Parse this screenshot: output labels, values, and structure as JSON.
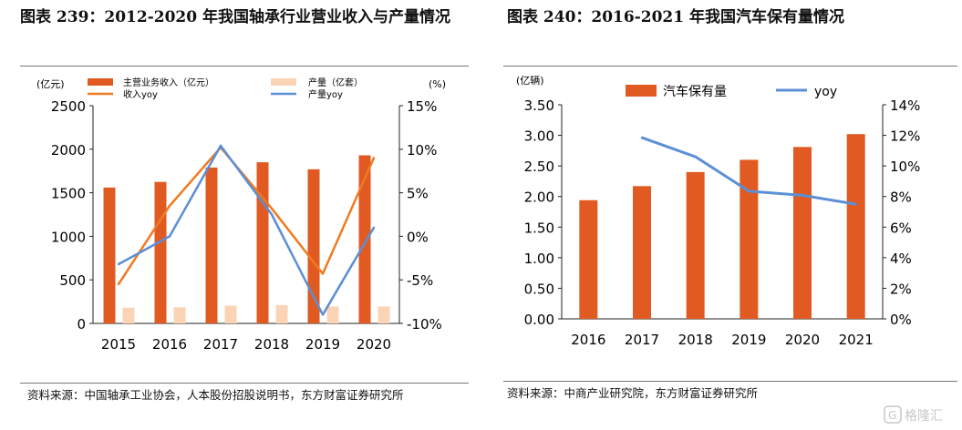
{
  "left": {
    "title": "图表 239：2012-2020 年我国轴承行业营业收入与产量情况",
    "source": "资料来源：中国轴承工业协会，人本股份招股说明书，东方财富证券研究所",
    "chart_data": {
      "type": "bar",
      "categories": [
        "2015",
        "2016",
        "2017",
        "2018",
        "2019",
        "2020"
      ],
      "y_left_unit": "(亿元)",
      "y_right_unit": "(%)",
      "y_left_ticks": [
        "0",
        "500",
        "1000",
        "1500",
        "2000",
        "2500"
      ],
      "y_right_ticks": [
        "-10%",
        "-5%",
        "0%",
        "5%",
        "10%",
        "15%"
      ],
      "ylim_left": [
        0,
        2500
      ],
      "ylim_right": [
        -10,
        15
      ],
      "legend": [
        "主营业务收入（亿元）",
        "产量（亿套）",
        "收入yoy",
        "产量yoy"
      ],
      "series": [
        {
          "name": "主营业务收入（亿元）",
          "kind": "bar",
          "axis": "left",
          "color": "#E05A22",
          "values": [
            1560,
            1625,
            1790,
            1850,
            1770,
            1930
          ]
        },
        {
          "name": "产量（亿套）",
          "kind": "bar",
          "axis": "left",
          "color": "#FBD4B5",
          "values": [
            180,
            185,
            205,
            210,
            195,
            195
          ]
        },
        {
          "name": "收入yoy",
          "kind": "line",
          "axis": "right",
          "color": "#F07A20",
          "values": [
            -5.5,
            3.5,
            10.2,
            3.2,
            -4.3,
            9.0
          ]
        },
        {
          "name": "产量yoy",
          "kind": "line",
          "axis": "right",
          "color": "#5B8FD6",
          "values": [
            -3.2,
            0.0,
            10.4,
            2.5,
            -9.0,
            1.0
          ]
        }
      ]
    }
  },
  "right": {
    "title": "图表 240：2016-2021 年我国汽车保有量情况",
    "source": "资料来源：中商产业研究院，东方财富证券研究所",
    "chart_data": {
      "type": "bar",
      "categories": [
        "2016",
        "2017",
        "2018",
        "2019",
        "2020",
        "2021"
      ],
      "y_left_unit": "(亿辆)",
      "y_left_ticks": [
        "0.00",
        "0.50",
        "1.00",
        "1.50",
        "2.00",
        "2.50",
        "3.00",
        "3.50"
      ],
      "y_right_ticks": [
        "0%",
        "2%",
        "4%",
        "6%",
        "8%",
        "10%",
        "12%",
        "14%"
      ],
      "ylim_left": [
        0,
        3.5
      ],
      "ylim_right": [
        0,
        14
      ],
      "legend": [
        "汽车保有量",
        "yoy"
      ],
      "series": [
        {
          "name": "汽车保有量",
          "kind": "bar",
          "axis": "left",
          "color": "#E05A22",
          "values": [
            1.94,
            2.17,
            2.4,
            2.6,
            2.81,
            3.02
          ]
        },
        {
          "name": "yoy",
          "kind": "line",
          "axis": "right",
          "color": "#5B8FD6",
          "values": [
            null,
            11.85,
            10.6,
            8.35,
            8.08,
            7.5
          ]
        }
      ]
    }
  },
  "watermark": {
    "text": "格隆汇",
    "color": "#9a9a9a"
  }
}
